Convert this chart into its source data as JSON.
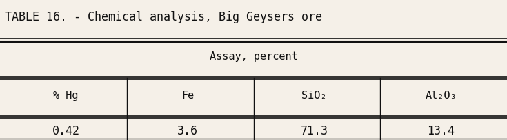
{
  "title": "TABLE 16. - Chemical analysis, Big Geysers ore",
  "assay_label": "Assay, percent",
  "columns": [
    "% Hg",
    "Fe",
    "SiO₂",
    "Al₂O₃"
  ],
  "values": [
    "0.42",
    "3.6",
    "71.3",
    "13.4"
  ],
  "bg_color": "#f5f0e8",
  "line_color": "#111111",
  "text_color": "#111111",
  "font_family": "monospace",
  "title_fontsize": 12,
  "header_fontsize": 11,
  "cell_fontsize": 12
}
